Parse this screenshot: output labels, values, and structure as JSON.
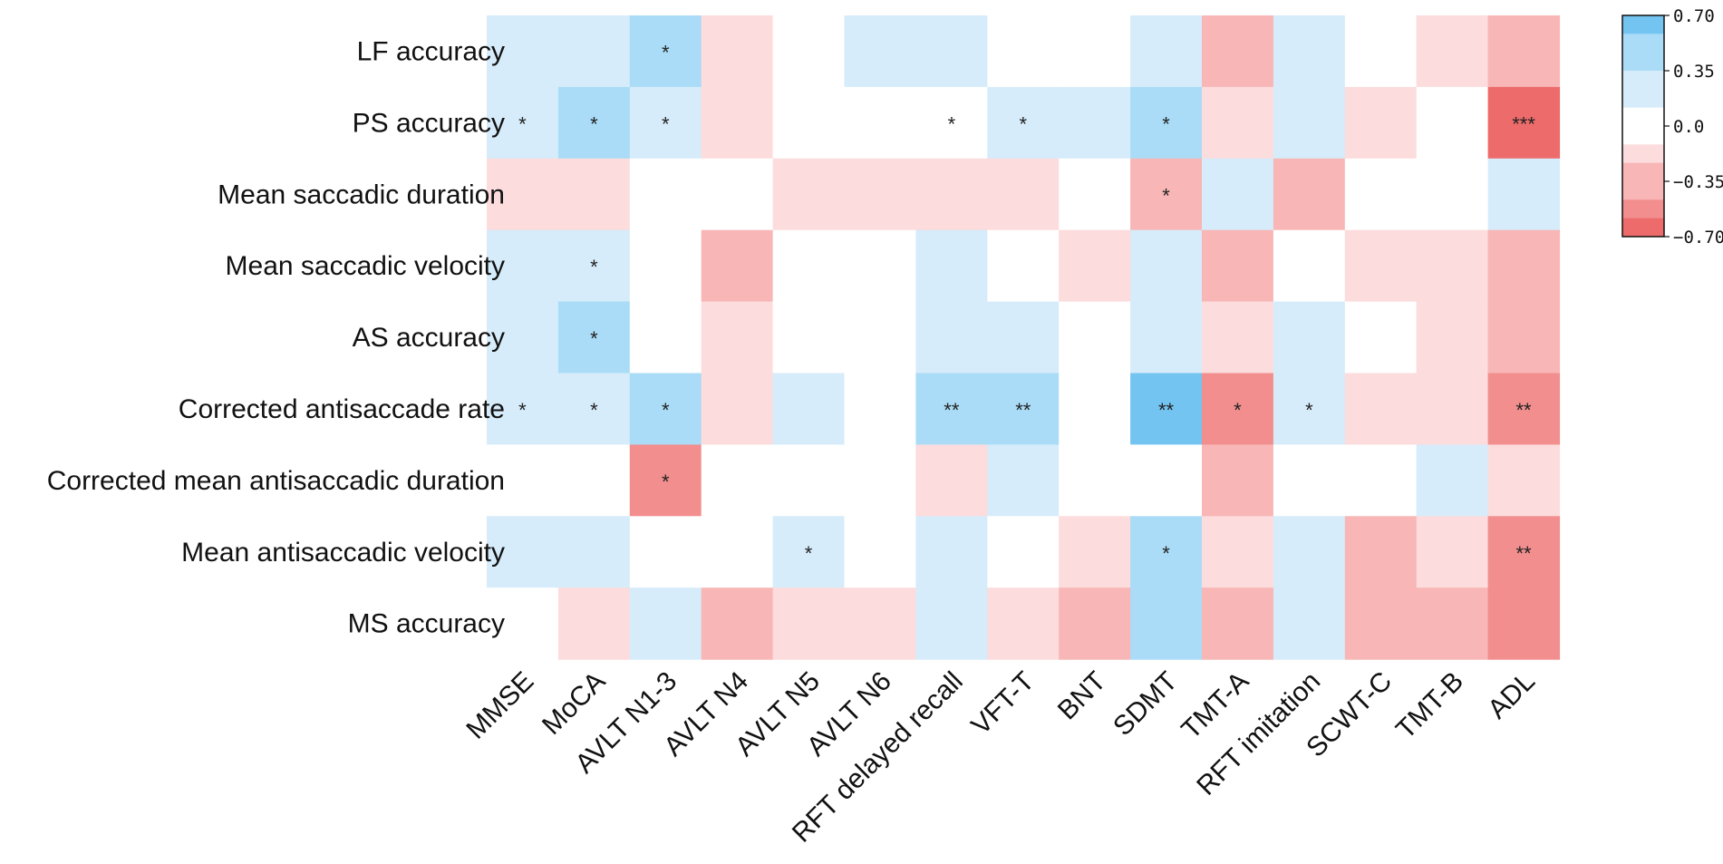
{
  "chart_data": {
    "type": "heatmap",
    "title": "",
    "rows": [
      "LF accuracy",
      "PS accuracy",
      "Mean saccadic duration",
      "Mean saccadic velocity",
      "AS accuracy",
      "Corrected antisaccade rate",
      "Corrected mean antisaccadic duration",
      "Mean antisaccadic velocity",
      "MS accuracy"
    ],
    "columns": [
      "MMSE",
      "MoCA",
      "AVLT N1-3",
      "AVLT N4",
      "AVLT N5",
      "AVLT N6",
      "RFT delayed recall",
      "VFT-T",
      "BNT",
      "SDMT",
      "TMT-A",
      "RFT imitation",
      "SCWT-C",
      "TMT-B",
      "ADL"
    ],
    "values": [
      [
        0.2,
        0.2,
        0.45,
        -0.15,
        0.0,
        0.2,
        0.2,
        0.0,
        0.0,
        0.2,
        -0.35,
        0.2,
        0.0,
        -0.15,
        -0.35
      ],
      [
        0.2,
        0.45,
        0.2,
        -0.15,
        0.0,
        0.0,
        0.0,
        0.2,
        0.2,
        0.45,
        -0.15,
        0.2,
        -0.15,
        0.0,
        -0.65
      ],
      [
        -0.15,
        -0.15,
        0.0,
        0.0,
        -0.15,
        -0.15,
        -0.15,
        -0.15,
        0.0,
        -0.35,
        0.2,
        -0.35,
        0.0,
        0.0,
        0.2
      ],
      [
        0.2,
        0.2,
        0.0,
        -0.35,
        0.0,
        0.0,
        0.2,
        0.0,
        -0.15,
        0.2,
        -0.35,
        0.0,
        -0.15,
        -0.15,
        -0.35
      ],
      [
        0.2,
        0.45,
        0.0,
        -0.15,
        0.0,
        0.0,
        0.2,
        0.2,
        0.0,
        0.2,
        -0.15,
        0.2,
        0.0,
        -0.15,
        -0.35
      ],
      [
        0.2,
        0.2,
        0.45,
        -0.15,
        0.2,
        0.0,
        0.45,
        0.45,
        0.0,
        0.65,
        -0.55,
        0.2,
        -0.15,
        -0.15,
        -0.55
      ],
      [
        0.0,
        0.0,
        -0.55,
        0.0,
        0.0,
        0.0,
        -0.15,
        0.2,
        0.0,
        0.0,
        -0.35,
        0.0,
        0.0,
        0.2,
        -0.15
      ],
      [
        0.2,
        0.2,
        0.0,
        0.0,
        0.2,
        0.0,
        0.2,
        0.0,
        -0.15,
        0.45,
        -0.15,
        0.2,
        -0.35,
        -0.15,
        -0.55
      ],
      [
        0.0,
        -0.15,
        0.2,
        -0.35,
        -0.15,
        -0.15,
        0.2,
        -0.15,
        -0.35,
        0.45,
        -0.35,
        0.2,
        -0.35,
        -0.35,
        -0.55
      ]
    ],
    "significance": [
      [
        "",
        "",
        "*",
        "",
        "",
        "",
        "",
        "",
        "",
        "",
        "",
        "",
        "",
        "",
        ""
      ],
      [
        "*",
        "*",
        "*",
        "",
        "",
        "",
        "*",
        "*",
        "",
        "*",
        "",
        "",
        "",
        "",
        "***"
      ],
      [
        "",
        "",
        "",
        "",
        "",
        "",
        "",
        "",
        "",
        "*",
        "",
        "",
        "",
        "",
        ""
      ],
      [
        "",
        "*",
        "",
        "",
        "",
        "",
        "",
        "",
        "",
        "",
        "",
        "",
        "",
        "",
        ""
      ],
      [
        "",
        "*",
        "",
        "",
        "",
        "",
        "",
        "",
        "",
        "",
        "",
        "",
        "",
        "",
        ""
      ],
      [
        "*",
        "*",
        "*",
        "",
        "",
        "",
        "**",
        "**",
        "",
        "**",
        "*",
        "*",
        "",
        "",
        "**"
      ],
      [
        "",
        "",
        "*",
        "",
        "",
        "",
        "",
        "",
        "",
        "",
        "",
        "",
        "",
        "",
        ""
      ],
      [
        "",
        "",
        "",
        "",
        "*",
        "",
        "",
        "",
        "",
        "*",
        "",
        "",
        "",
        "",
        "**"
      ],
      [
        "",
        "",
        "",
        "",
        "",
        "",
        "",
        "",
        "",
        "",
        "",
        "",
        "",
        "",
        ""
      ]
    ],
    "colorbar": {
      "range": [
        -0.7,
        0.7
      ],
      "tick_labels": [
        "0.70",
        "0.35",
        "0.0",
        "−0.35",
        "−0.70"
      ],
      "tick_values": [
        0.7,
        0.35,
        0.0,
        -0.35,
        -0.7
      ],
      "bins": [
        {
          "min": 0.5833,
          "max": 0.7,
          "color": "#74c4f2"
        },
        {
          "min": 0.35,
          "max": 0.5833,
          "color": "#aadcf7"
        },
        {
          "min": 0.1167,
          "max": 0.35,
          "color": "#d6ecfa"
        },
        {
          "min": -0.1167,
          "max": 0.1167,
          "color": "#ffffff"
        },
        {
          "min": -0.2333,
          "max": -0.1167,
          "color": "#fcdcdc"
        },
        {
          "min": -0.4667,
          "max": -0.2333,
          "color": "#f8b6b6"
        },
        {
          "min": -0.5833,
          "max": -0.4667,
          "color": "#f28e8e"
        },
        {
          "min": -0.7,
          "max": -0.5833,
          "color": "#ee6b6b"
        }
      ]
    }
  }
}
